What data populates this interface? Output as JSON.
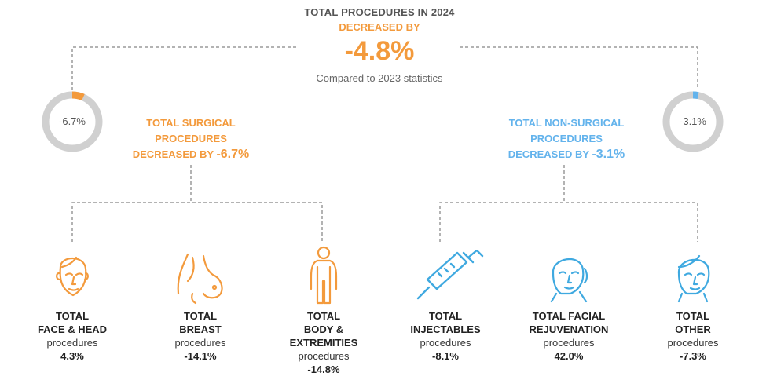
{
  "header": {
    "title": "TOTAL PROCEDURES IN 2024",
    "subtitle": "DECREASED BY",
    "value": "-4.8%",
    "note": "Compared to 2023 statistics"
  },
  "surgical": {
    "ring_value": "-6.7%",
    "ring_fraction": 0.067,
    "line1": "TOTAL SURGICAL",
    "line2": "PROCEDURES",
    "line3_prefix": "DECREASED BY",
    "line3_value": "-6.7%"
  },
  "nonsurgical": {
    "ring_value": "-3.1%",
    "ring_fraction": 0.031,
    "line1": "TOTAL NON-SURGICAL",
    "line2": "PROCEDURES",
    "line3_prefix": "DECREASED BY",
    "line3_value": "-3.1%"
  },
  "categories": [
    {
      "title1": "TOTAL",
      "title2": "FACE & HEAD",
      "title3": "",
      "proc": "procedures",
      "value": "4.3%",
      "icon": "face-head-icon",
      "color": "#f39a3c"
    },
    {
      "title1": "TOTAL",
      "title2": "BREAST",
      "title3": "",
      "proc": "procedures",
      "value": "-14.1%",
      "icon": "breast-icon",
      "color": "#f39a3c"
    },
    {
      "title1": "TOTAL",
      "title2": "BODY &",
      "title3": "EXTREMITIES",
      "proc": "procedures",
      "value": "-14.8%",
      "icon": "body-icon",
      "color": "#f39a3c"
    },
    {
      "title1": "TOTAL",
      "title2": "INJECTABLES",
      "title3": "",
      "proc": "procedures",
      "value": "-8.1%",
      "icon": "syringe-icon",
      "color": "#3fa9e0"
    },
    {
      "title1": "TOTAL FACIAL",
      "title2": "REJUVENATION",
      "title3": "",
      "proc": "procedures",
      "value": "42.0%",
      "icon": "face-rejuvenation-icon",
      "color": "#3fa9e0"
    },
    {
      "title1": "TOTAL",
      "title2": "OTHER",
      "title3": "",
      "proc": "procedures",
      "value": "-7.3%",
      "icon": "face-other-icon",
      "color": "#3fa9e0"
    }
  ],
  "colors": {
    "orange": "#f39a3c",
    "blue": "#63b3ec",
    "ring_gray": "#d0d0d0",
    "line_gray": "#999999"
  }
}
